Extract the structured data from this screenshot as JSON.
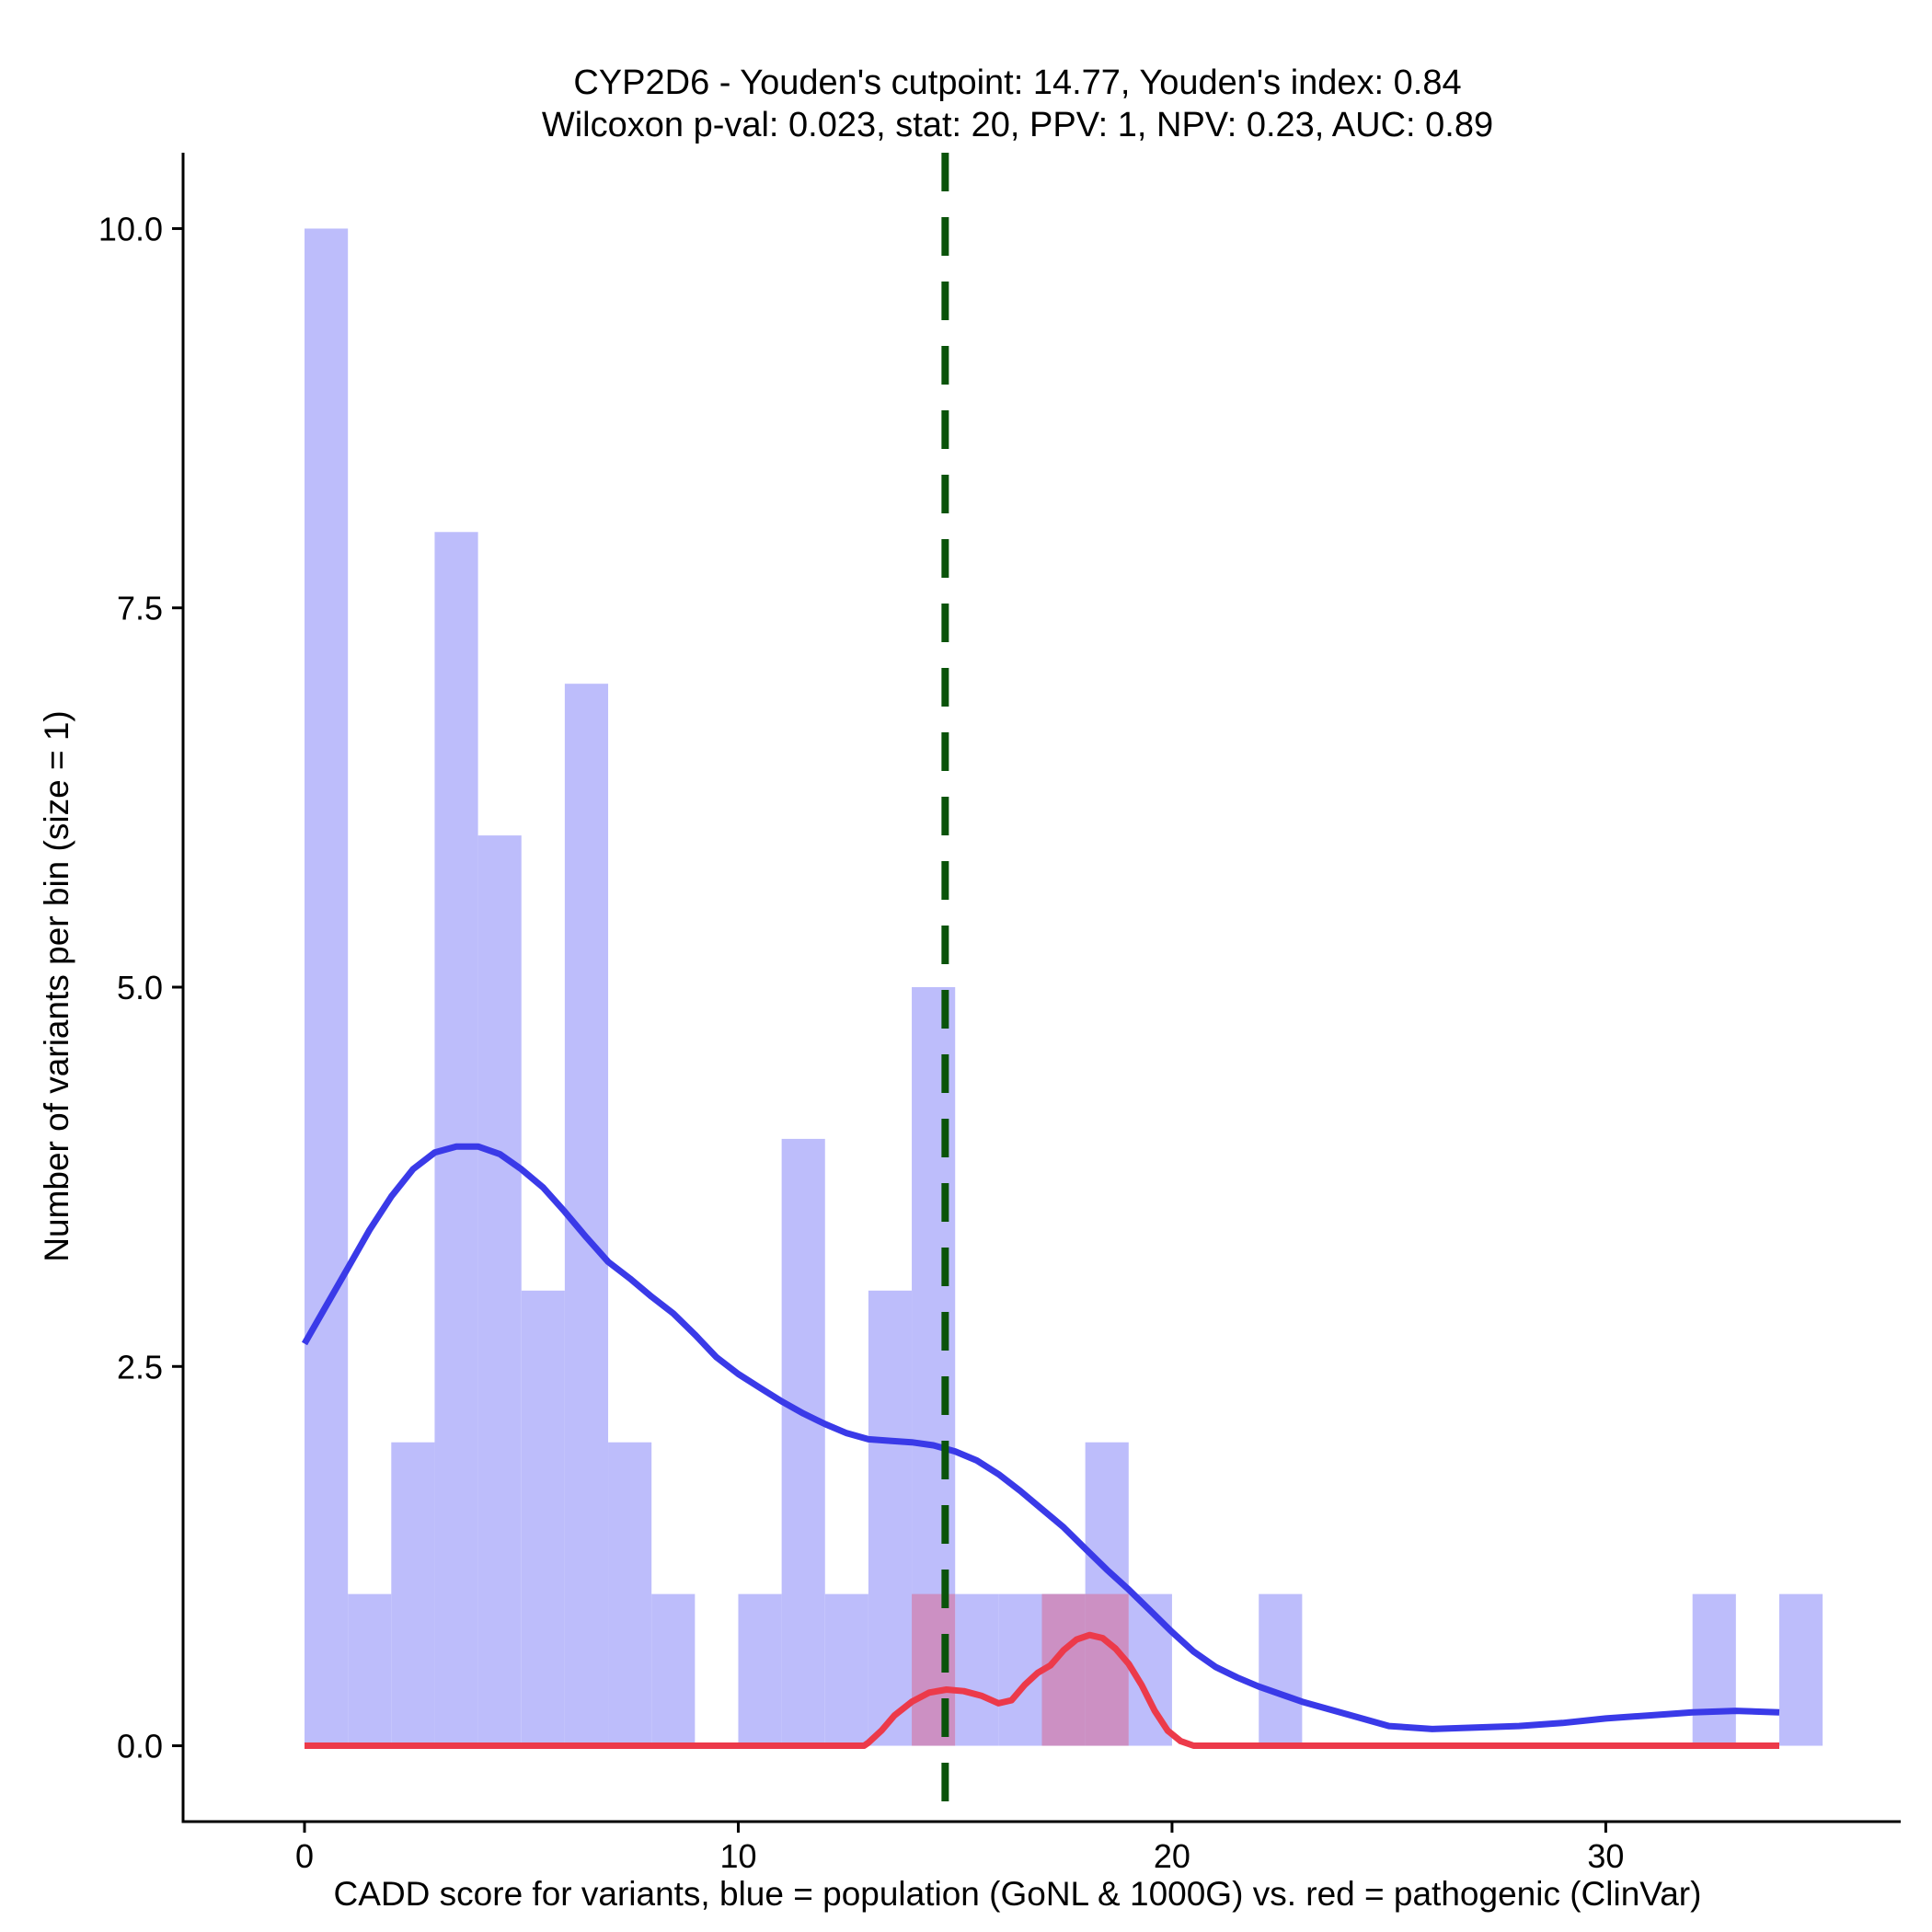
{
  "chart_data": {
    "type": "histogram",
    "title_line1": "CYP2D6 - Youden's cutpoint: 14.77, Youden's index: 0.84",
    "title_line2": "Wilcoxon p-val: 0.023, stat: 20, PPV: 1, NPV: 0.23, AUC: 0.89",
    "xlabel": "CADD score for variants, blue = population (GoNL & 1000G) vs. red = pathogenic (ClinVar)",
    "ylabel": "Number of variants per bin (size = 1)",
    "xlim": [
      -2.8,
      36.8
    ],
    "ylim": [
      -0.5,
      10.5
    ],
    "x_ticks": [
      0,
      10,
      20,
      30
    ],
    "x_tick_labels": [
      "0",
      "10",
      "20",
      "30"
    ],
    "y_ticks": [
      0,
      2.5,
      5,
      7.5,
      10
    ],
    "y_tick_labels": [
      "0.0",
      "2.5",
      "5.0",
      "7.5",
      "10.0"
    ],
    "bin_size": 1,
    "cutpoint": 14.77,
    "colors": {
      "population_bar": "#bdbdfb",
      "pathogenic_bar": "#cc90c3",
      "population_line": "#3a3ae8",
      "pathogenic_line": "#ec3a4a",
      "cutpoint_line": "#0a530a"
    },
    "series": [
      {
        "name": "population",
        "bins": [
          {
            "x0": 0,
            "x1": 1,
            "count": 10
          },
          {
            "x0": 1,
            "x1": 2,
            "count": 1
          },
          {
            "x0": 2,
            "x1": 3,
            "count": 2
          },
          {
            "x0": 3,
            "x1": 4,
            "count": 8
          },
          {
            "x0": 4,
            "x1": 5,
            "count": 6
          },
          {
            "x0": 5,
            "x1": 6,
            "count": 3
          },
          {
            "x0": 6,
            "x1": 7,
            "count": 7
          },
          {
            "x0": 7,
            "x1": 8,
            "count": 2
          },
          {
            "x0": 8,
            "x1": 9,
            "count": 1
          },
          {
            "x0": 10,
            "x1": 11,
            "count": 1
          },
          {
            "x0": 11,
            "x1": 12,
            "count": 4
          },
          {
            "x0": 12,
            "x1": 13,
            "count": 1
          },
          {
            "x0": 13,
            "x1": 14,
            "count": 3
          },
          {
            "x0": 14,
            "x1": 15,
            "count": 5
          },
          {
            "x0": 15,
            "x1": 16,
            "count": 1
          },
          {
            "x0": 16,
            "x1": 17,
            "count": 1
          },
          {
            "x0": 17,
            "x1": 18,
            "count": 1
          },
          {
            "x0": 18,
            "x1": 19,
            "count": 2
          },
          {
            "x0": 19,
            "x1": 20,
            "count": 1
          },
          {
            "x0": 22,
            "x1": 23,
            "count": 1
          },
          {
            "x0": 32,
            "x1": 33,
            "count": 1
          },
          {
            "x0": 34,
            "x1": 35,
            "count": 1
          }
        ],
        "density_curve": {
          "x": [
            0,
            0.5,
            1,
            1.5,
            2,
            2.5,
            3,
            3.5,
            4,
            4.5,
            5,
            5.5,
            6,
            6.5,
            7,
            7.5,
            8,
            8.5,
            9,
            9.5,
            10,
            10.5,
            11,
            11.5,
            12,
            12.5,
            13,
            13.5,
            14,
            14.5,
            15,
            15.5,
            16,
            16.5,
            17,
            17.5,
            18,
            18.5,
            19,
            19.5,
            20,
            20.5,
            21,
            21.5,
            22,
            23,
            24,
            25,
            26,
            27,
            28,
            29,
            30,
            31,
            32,
            33,
            34
          ],
          "y": [
            2.65,
            2.9,
            3.15,
            3.4,
            3.62,
            3.8,
            3.91,
            3.95,
            3.95,
            3.9,
            3.8,
            3.68,
            3.52,
            3.35,
            3.19,
            3.08,
            2.96,
            2.85,
            2.71,
            2.56,
            2.45,
            2.36,
            2.27,
            2.19,
            2.12,
            2.06,
            2.02,
            2.01,
            2.0,
            1.98,
            1.94,
            1.88,
            1.79,
            1.68,
            1.56,
            1.44,
            1.3,
            1.16,
            1.03,
            0.89,
            0.75,
            0.62,
            0.52,
            0.45,
            0.39,
            0.29,
            0.21,
            0.13,
            0.11,
            0.12,
            0.13,
            0.15,
            0.18,
            0.2,
            0.22,
            0.23,
            0.22
          ]
        }
      },
      {
        "name": "pathogenic",
        "bins": [
          {
            "x0": 14,
            "x1": 15,
            "count": 1
          },
          {
            "x0": 17,
            "x1": 18,
            "count": 1
          },
          {
            "x0": 18,
            "x1": 19,
            "count": 1
          }
        ],
        "density_curve": {
          "x": [
            0,
            5,
            10,
            12.9,
            13.0,
            13.3,
            13.6,
            14.0,
            14.4,
            14.8,
            15.2,
            15.6,
            16.0,
            16.3,
            16.6,
            16.9,
            17.2,
            17.5,
            17.8,
            18.1,
            18.4,
            18.7,
            19.0,
            19.3,
            19.6,
            19.9,
            20.2,
            20.5,
            21,
            25,
            30,
            34
          ],
          "y": [
            0,
            0,
            0,
            0,
            0.02,
            0.1,
            0.2,
            0.29,
            0.35,
            0.37,
            0.36,
            0.33,
            0.28,
            0.3,
            0.4,
            0.48,
            0.53,
            0.63,
            0.7,
            0.73,
            0.71,
            0.64,
            0.54,
            0.4,
            0.23,
            0.1,
            0.03,
            0,
            0,
            0,
            0,
            0
          ]
        }
      }
    ]
  }
}
